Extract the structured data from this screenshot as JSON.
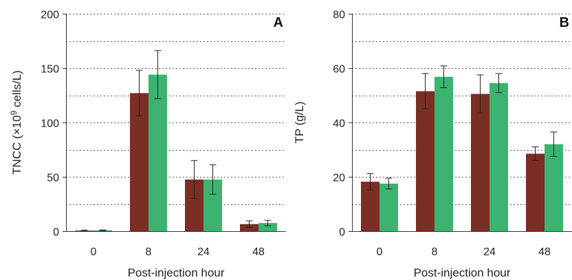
{
  "chart_data": [
    {
      "type": "bar",
      "panel_label": "A",
      "categories": [
        "0",
        "8",
        "24",
        "48"
      ],
      "series": [
        {
          "color": "#7b2e24",
          "values": [
            0.5,
            127,
            47.5,
            6.5
          ],
          "errors": [
            0.5,
            21,
            17.5,
            3
          ]
        },
        {
          "color": "#3cb371",
          "values": [
            0.8,
            144,
            47.5,
            7.5
          ],
          "errors": [
            0.3,
            22,
            13.5,
            2.5
          ]
        }
      ],
      "xlabel": "Post-injection hour",
      "ylabel_main": "TNCC (×10",
      "ylabel_sup": "9",
      "ylabel_tail": " cells/L)",
      "ylim": [
        0,
        200
      ],
      "yticks": [
        0,
        50,
        100,
        150,
        200
      ],
      "grid_step": 25,
      "grid": true
    },
    {
      "type": "bar",
      "panel_label": "B",
      "categories": [
        "0",
        "8",
        "24",
        "48"
      ],
      "series": [
        {
          "color": "#7b2e24",
          "values": [
            18.2,
            51.5,
            50.5,
            28.5
          ],
          "errors": [
            3,
            6.5,
            7,
            2.5
          ]
        },
        {
          "color": "#3cb371",
          "values": [
            17.5,
            56.8,
            54.5,
            32
          ],
          "errors": [
            2,
            4,
            3.5,
            4.5
          ]
        }
      ],
      "xlabel": "Post-injection hour",
      "ylabel_main": "TP (g/L)",
      "ylabel_sup": "",
      "ylabel_tail": "",
      "ylim": [
        0,
        80
      ],
      "yticks": [
        0,
        20,
        40,
        60,
        80
      ],
      "grid_step": 10,
      "grid": true
    }
  ]
}
